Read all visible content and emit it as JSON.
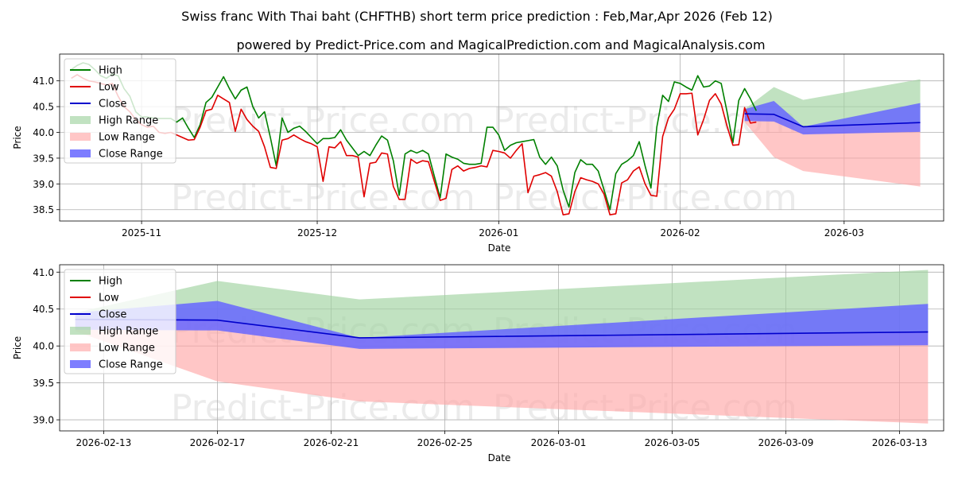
{
  "title": "Swiss franc With Thai baht (CHFTHB) short term price prediction : Feb,Mar,Apr 2026 (Feb 12)",
  "subtitle": "powered by Predict-Price.com and MagicalPrediction.com and MagicalAnalysis.com",
  "watermark": "Predict-Price.com",
  "colors": {
    "high": "#008000",
    "low": "#e00000",
    "close": "#0000cc",
    "high_range": "#9fd29f",
    "low_range": "#ffa8a8",
    "close_range": "#6666ff"
  },
  "chart_data": [
    {
      "type": "line",
      "name": "history-and-forecast",
      "xlabel": "Date",
      "ylabel": "Price",
      "grid": true,
      "legend_position": "top-left",
      "legend": [
        "High",
        "Low",
        "Close",
        "High Range",
        "Low Range",
        "Close Range"
      ],
      "xlim": [
        "2025-10-18",
        "2026-03-18"
      ],
      "ylim": [
        38.28,
        41.52
      ],
      "x_ticks": [
        {
          "date": "2025-11-01",
          "label": "2025-11"
        },
        {
          "date": "2025-12-01",
          "label": "2025-12"
        },
        {
          "date": "2026-01-01",
          "label": "2026-01"
        },
        {
          "date": "2026-02-01",
          "label": "2026-02"
        },
        {
          "date": "2026-03-01",
          "label": "2026-03"
        }
      ],
      "y_ticks": [
        38.5,
        39.0,
        39.5,
        40.0,
        40.5,
        41.0
      ],
      "series": [
        {
          "name": "High",
          "start": "2025-10-20",
          "values": [
            41.22,
            41.3,
            41.35,
            41.32,
            41.22,
            41.1,
            41.05,
            41.13,
            41.1,
            40.85,
            40.7,
            40.4,
            40.3,
            40.3,
            40.28,
            40.27,
            40.27,
            40.27,
            40.2,
            40.28,
            40.08,
            39.9,
            40.15,
            40.58,
            40.68,
            40.88,
            41.08,
            40.85,
            40.65,
            40.82,
            40.88,
            40.5,
            40.28,
            40.4,
            39.9,
            39.35,
            40.28,
            40.0,
            40.08,
            40.12,
            40.02,
            39.9,
            39.78,
            39.88,
            39.88,
            39.9,
            40.05,
            39.85,
            39.7,
            39.55,
            39.63,
            39.55,
            39.75,
            39.93,
            39.85,
            39.45,
            38.78,
            39.58,
            39.65,
            39.6,
            39.65,
            39.58,
            39.15,
            38.73,
            39.58,
            39.52,
            39.48,
            39.4,
            39.38,
            39.38,
            39.4,
            40.1,
            40.1,
            39.95,
            39.65,
            39.75,
            39.8,
            39.82,
            39.84,
            39.86,
            39.52,
            39.38,
            39.52,
            39.35,
            38.88,
            38.55,
            39.22,
            39.47,
            39.38,
            39.38,
            39.25,
            38.88,
            38.5,
            39.2,
            39.38,
            39.45,
            39.55,
            39.82,
            39.35,
            38.92,
            40.1,
            40.72,
            40.6,
            40.98,
            40.95,
            40.88,
            40.82,
            41.1,
            40.88,
            40.9,
            41.0,
            40.95,
            40.4,
            39.8,
            40.62,
            40.85,
            40.65,
            40.42
          ]
        },
        {
          "name": "Low",
          "start": "2025-10-20",
          "values": [
            41.05,
            41.12,
            41.05,
            41.0,
            40.98,
            40.95,
            40.92,
            40.95,
            40.7,
            40.5,
            40.4,
            40.25,
            40.15,
            40.1,
            40.12,
            40.0,
            39.98,
            40.0,
            39.95,
            39.9,
            39.85,
            39.86,
            40.1,
            40.42,
            40.45,
            40.72,
            40.65,
            40.58,
            40.02,
            40.45,
            40.25,
            40.12,
            40.02,
            39.72,
            39.32,
            39.3,
            39.85,
            39.88,
            39.95,
            39.88,
            39.82,
            39.78,
            39.72,
            39.05,
            39.72,
            39.7,
            39.82,
            39.55,
            39.55,
            39.52,
            38.75,
            39.4,
            39.42,
            39.6,
            39.58,
            38.95,
            38.7,
            38.7,
            39.48,
            39.4,
            39.45,
            39.43,
            39.05,
            38.68,
            38.72,
            39.28,
            39.35,
            39.25,
            39.3,
            39.32,
            39.35,
            39.33,
            39.65,
            39.63,
            39.6,
            39.5,
            39.65,
            39.78,
            38.83,
            39.15,
            39.18,
            39.22,
            39.15,
            38.85,
            38.4,
            38.42,
            38.85,
            39.12,
            39.08,
            39.05,
            39.0,
            38.8,
            38.4,
            38.42,
            39.02,
            39.08,
            39.25,
            39.33,
            39.0,
            38.78,
            38.76,
            39.92,
            40.28,
            40.45,
            40.75,
            40.75,
            40.76,
            39.95,
            40.25,
            40.62,
            40.75,
            40.55,
            40.12,
            39.75,
            39.76,
            40.48,
            40.18,
            40.2
          ]
        },
        {
          "name": "Close",
          "x": [
            "2026-02-12",
            "2026-02-17",
            "2026-02-22",
            "2026-03-14"
          ],
          "values": [
            40.36,
            40.35,
            40.11,
            40.19
          ]
        },
        {
          "name": "High Range",
          "x": [
            "2026-02-12",
            "2026-02-17",
            "2026-02-22",
            "2026-03-14"
          ],
          "lower": [
            40.36,
            40.35,
            40.11,
            40.19
          ],
          "upper": [
            40.45,
            40.88,
            40.63,
            41.03
          ]
        },
        {
          "name": "Low Range",
          "x": [
            "2026-02-12",
            "2026-02-17",
            "2026-02-22",
            "2026-03-14"
          ],
          "lower": [
            40.2,
            39.52,
            39.25,
            38.95
          ],
          "upper": [
            40.36,
            40.35,
            40.11,
            40.19
          ]
        },
        {
          "name": "Close Range",
          "x": [
            "2026-02-12",
            "2026-02-17",
            "2026-02-22",
            "2026-03-14"
          ],
          "lower": [
            40.22,
            40.21,
            39.96,
            40.01
          ],
          "upper": [
            40.45,
            40.61,
            40.11,
            40.57
          ]
        }
      ]
    },
    {
      "type": "line",
      "name": "forecast-detail",
      "xlabel": "Date",
      "ylabel": "Price",
      "grid": true,
      "legend_position": "top-left",
      "legend": [
        "High",
        "Low",
        "Close",
        "High Range",
        "Low Range",
        "Close Range"
      ],
      "xlim": [
        "2026-02-11.45",
        "2026-03-14.55"
      ],
      "ylim": [
        38.85,
        41.1
      ],
      "x_ticks": [
        {
          "date": "2026-02-13",
          "label": "2026-02-13"
        },
        {
          "date": "2026-02-17",
          "label": "2026-02-17"
        },
        {
          "date": "2026-02-21",
          "label": "2026-02-21"
        },
        {
          "date": "2026-02-25",
          "label": "2026-02-25"
        },
        {
          "date": "2026-03-01",
          "label": "2026-03-01"
        },
        {
          "date": "2026-03-05",
          "label": "2026-03-05"
        },
        {
          "date": "2026-03-09",
          "label": "2026-03-09"
        },
        {
          "date": "2026-03-13",
          "label": "2026-03-13"
        }
      ],
      "y_ticks": [
        39.0,
        39.5,
        40.0,
        40.5,
        41.0
      ],
      "series": [
        {
          "name": "Close",
          "x": [
            "2026-02-12",
            "2026-02-17",
            "2026-02-22",
            "2026-03-14"
          ],
          "values": [
            40.36,
            40.35,
            40.11,
            40.19
          ]
        },
        {
          "name": "High Range",
          "x": [
            "2026-02-12",
            "2026-02-17",
            "2026-02-22",
            "2026-03-14"
          ],
          "lower": [
            40.36,
            40.35,
            40.11,
            40.19
          ],
          "upper": [
            40.45,
            40.88,
            40.63,
            41.03
          ]
        },
        {
          "name": "Low Range",
          "x": [
            "2026-02-12",
            "2026-02-17",
            "2026-02-22",
            "2026-03-14"
          ],
          "lower": [
            40.2,
            39.52,
            39.25,
            38.95
          ],
          "upper": [
            40.36,
            40.35,
            40.11,
            40.19
          ]
        },
        {
          "name": "Close Range",
          "x": [
            "2026-02-12",
            "2026-02-17",
            "2026-02-22",
            "2026-03-14"
          ],
          "lower": [
            40.22,
            40.21,
            39.96,
            40.01
          ],
          "upper": [
            40.45,
            40.61,
            40.11,
            40.57
          ]
        }
      ]
    }
  ]
}
